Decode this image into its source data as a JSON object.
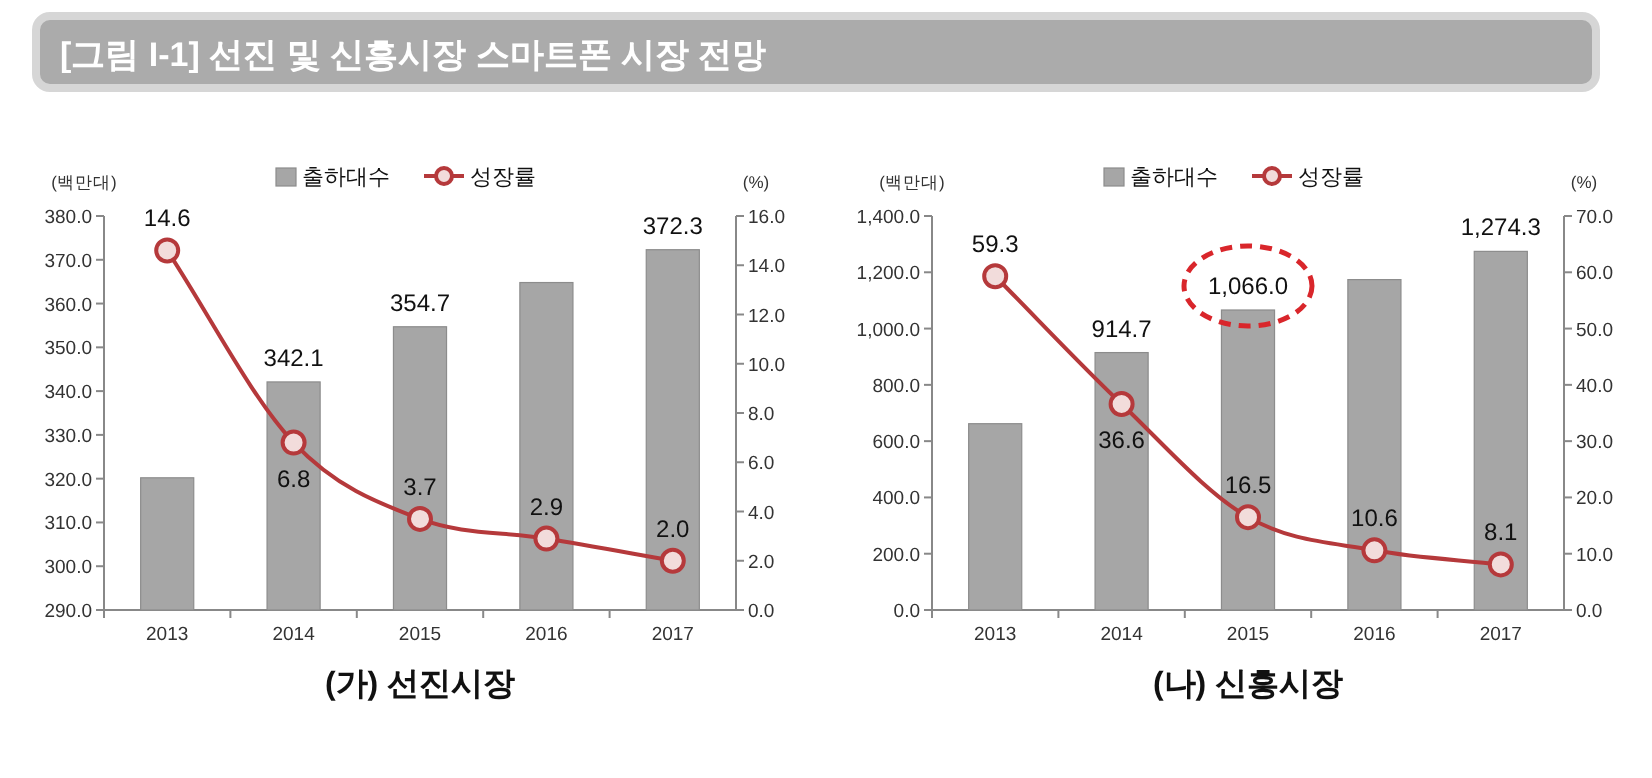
{
  "chart_data": [
    {
      "type": "bar",
      "title": "[그림 I-1] 선진 및 신흥시장 스마트폰 시장 전망",
      "xlabel": "(가) 선진시장",
      "ylabel": "(백만대)",
      "y2label": "(%)",
      "legend": "top",
      "grid": false,
      "categories": [
        "2013",
        "2014",
        "2015",
        "2016",
        "2017"
      ],
      "ylim": [
        290,
        380
      ],
      "yticks": [
        {
          "value": 290,
          "label": "290.0"
        },
        {
          "value": 300,
          "label": "300.0"
        },
        {
          "value": 310,
          "label": "310.0"
        },
        {
          "value": 320,
          "label": "320.0"
        },
        {
          "value": 330,
          "label": "330.0"
        },
        {
          "value": 340,
          "label": "340.0"
        },
        {
          "value": 350,
          "label": "350.0"
        },
        {
          "value": 360,
          "label": "360.0"
        },
        {
          "value": 370,
          "label": "370.0"
        },
        {
          "value": 380,
          "label": "380.0"
        }
      ],
      "y2lim": [
        0,
        16
      ],
      "y2ticks": [
        {
          "value": 0,
          "label": "0.0"
        },
        {
          "value": 2,
          "label": "2.0"
        },
        {
          "value": 4,
          "label": "4.0"
        },
        {
          "value": 6,
          "label": "6.0"
        },
        {
          "value": 8,
          "label": "8.0"
        },
        {
          "value": 10,
          "label": "10.0"
        },
        {
          "value": 12,
          "label": "12.0"
        },
        {
          "value": 14,
          "label": "14.0"
        },
        {
          "value": 16,
          "label": "16.0"
        }
      ],
      "series": [
        {
          "name": "출하대수",
          "color": "#a6a6a6",
          "values": [
            320.2,
            342.1,
            354.7,
            364.8,
            372.3
          ],
          "value_labels": [
            null,
            "342.1",
            "354.7",
            null,
            "372.3"
          ]
        },
        {
          "name": "성장률",
          "type": "line",
          "axis": "y2",
          "color": "#b5393b",
          "marker": "circle",
          "line_style": "solid",
          "values": [
            14.6,
            6.8,
            3.7,
            2.9,
            2.0
          ],
          "value_labels": [
            "14.6",
            "6.8",
            "3.7",
            "2.9",
            "2.0"
          ]
        }
      ]
    },
    {
      "type": "bar",
      "xlabel": "(나) 신흥시장",
      "ylabel": "(백만대)",
      "y2label": "(%)",
      "legend": "top",
      "grid": false,
      "categories": [
        "2013",
        "2014",
        "2015",
        "2016",
        "2017"
      ],
      "ylim": [
        0,
        1400
      ],
      "yticks": [
        {
          "value": 0,
          "label": "0.0"
        },
        {
          "value": 200,
          "label": "200.0"
        },
        {
          "value": 400,
          "label": "400.0"
        },
        {
          "value": 600,
          "label": "600.0"
        },
        {
          "value": 800,
          "label": "800.0"
        },
        {
          "value": 1000,
          "label": "1,000.0"
        },
        {
          "value": 1200,
          "label": "1,200.0"
        },
        {
          "value": 1400,
          "label": "1,400.0"
        }
      ],
      "y2lim": [
        0,
        70
      ],
      "y2ticks": [
        {
          "value": 0,
          "label": "0.0"
        },
        {
          "value": 10,
          "label": "10.0"
        },
        {
          "value": 20,
          "label": "20.0"
        },
        {
          "value": 30,
          "label": "30.0"
        },
        {
          "value": 40,
          "label": "40.0"
        },
        {
          "value": 50,
          "label": "50.0"
        },
        {
          "value": 60,
          "label": "60.0"
        },
        {
          "value": 70,
          "label": "70.0"
        }
      ],
      "annotations": [
        {
          "text": "1,066.0",
          "x": "2015",
          "y": 1066.0
        }
      ],
      "series": [
        {
          "name": "출하대수",
          "color": "#a6a6a6",
          "values": [
            662,
            914.7,
            1066.0,
            1174,
            1274.3
          ],
          "value_labels": [
            null,
            "914.7",
            null,
            null,
            "1,274.3"
          ]
        },
        {
          "name": "성장률",
          "type": "line",
          "axis": "y2",
          "color": "#b5393b",
          "marker": "circle",
          "line_style": "solid",
          "values": [
            59.3,
            36.6,
            16.5,
            10.6,
            8.1
          ],
          "value_labels": [
            "59.3",
            "36.6",
            "16.5",
            "10.6",
            "8.1"
          ]
        }
      ]
    }
  ]
}
